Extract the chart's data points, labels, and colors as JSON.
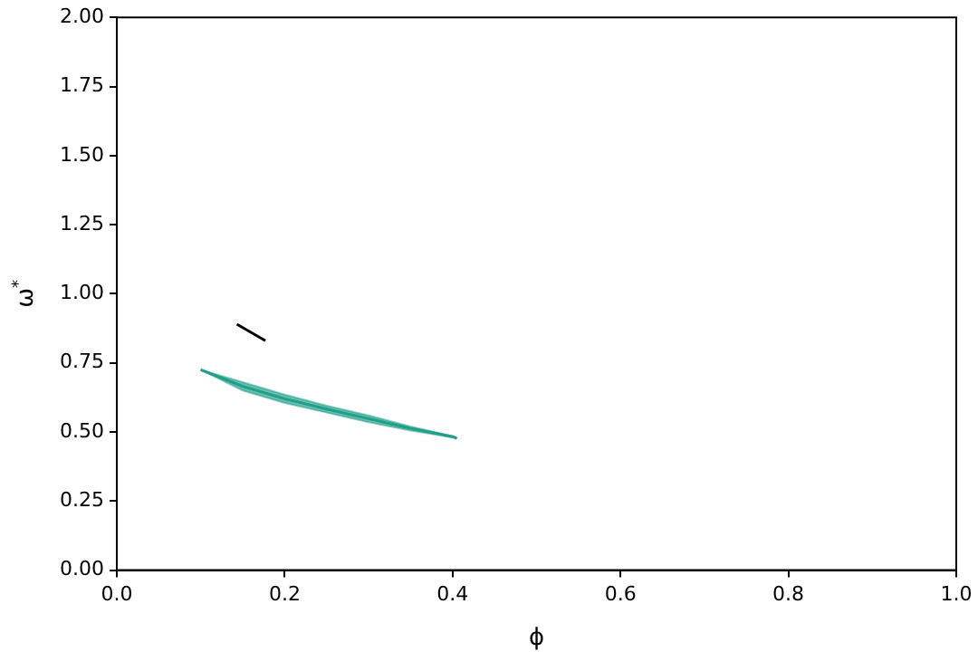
{
  "chart_data": {
    "type": "line",
    "xlabel": "ϕ",
    "ylabel": "ω$^{*}$",
    "xlim": [
      0,
      1
    ],
    "xticks": [
      {
        "value": 0,
        "label": "0.0"
      },
      {
        "value": 0.2,
        "label": "0.2"
      },
      {
        "value": 0.4,
        "label": "0.4"
      },
      {
        "value": 0.6,
        "label": "0.6"
      },
      {
        "value": 0.8,
        "label": "0.8"
      },
      {
        "value": 1,
        "label": "1.0"
      }
    ],
    "ylim": [
      0,
      2
    ],
    "yticks": [
      {
        "value": 0,
        "label": "0.00"
      },
      {
        "value": 0.25,
        "label": "0.25"
      },
      {
        "value": 0.5,
        "label": "0.50"
      },
      {
        "value": 0.75,
        "label": "0.75"
      },
      {
        "value": 1,
        "label": "1.00"
      },
      {
        "value": 1.25,
        "label": "1.25"
      },
      {
        "value": 1.5,
        "label": "1.50"
      },
      {
        "value": 1.75,
        "label": "1.75"
      },
      {
        "value": 2,
        "label": "2.00"
      }
    ],
    "grid": false,
    "legend": false,
    "marker": "none",
    "series": [
      {
        "color": "#1f9e89",
        "x": [
          0.1,
          0.15,
          0.2,
          0.25,
          0.3,
          0.35,
          0.4,
          0.405
        ],
        "values": [
          0.725,
          0.665,
          0.62,
          0.583,
          0.548,
          0.513,
          0.483,
          0.477
        ],
        "lower": [
          0.725,
          0.65,
          0.605,
          0.57,
          0.535,
          0.505,
          0.48,
          0.477
        ],
        "upper": [
          0.725,
          0.68,
          0.635,
          0.595,
          0.56,
          0.52,
          0.485,
          0.477
        ]
      },
      {
        "color": "#000000",
        "x": [
          0.143,
          0.177
        ],
        "values": [
          0.89,
          0.83
        ]
      }
    ]
  }
}
